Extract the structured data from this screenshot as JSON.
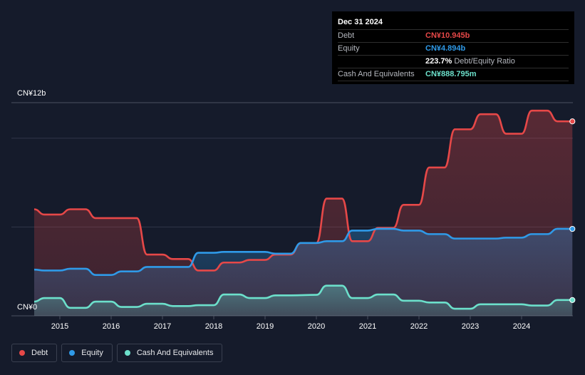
{
  "tooltip": {
    "date": "Dec 31 2024",
    "rows": [
      {
        "label": "Debt",
        "value": "CN¥10.945b",
        "color": "#e64848"
      },
      {
        "label": "Equity",
        "value": "CN¥4.894b",
        "color": "#2f9ae8"
      },
      {
        "label": "",
        "value": "223.7%",
        "suffix": "Debt/Equity Ratio",
        "color": "#ffffff"
      },
      {
        "label": "Cash And Equivalents",
        "value": "CN¥888.795m",
        "color": "#6ce0cb"
      }
    ]
  },
  "colors": {
    "debt": "#e64848",
    "equity": "#2f9ae8",
    "cash": "#6ce0cb",
    "background": "#151b2b",
    "tooltip_bg": "#000000"
  },
  "legend": [
    {
      "label": "Debt",
      "color": "#e64848"
    },
    {
      "label": "Equity",
      "color": "#2f9ae8"
    },
    {
      "label": "Cash And Equivalents",
      "color": "#6ce0cb"
    }
  ],
  "chart_data": {
    "type": "area",
    "title": "",
    "xlabel": "",
    "ylabel": "",
    "y_top_label": "CN¥12b",
    "y_bottom_label": "CN¥0",
    "ylim": [
      0,
      12
    ],
    "xlim": [
      2014.5,
      2025.0
    ],
    "x_ticks": [
      2015,
      2016,
      2017,
      2018,
      2019,
      2020,
      2021,
      2022,
      2023,
      2024
    ],
    "x_tick_labels": [
      "2015",
      "2016",
      "2017",
      "2018",
      "2019",
      "2020",
      "2021",
      "2022",
      "2023",
      "2024"
    ],
    "grid": true,
    "legend_position": "bottom-left",
    "series": [
      {
        "name": "Debt",
        "key": "debt",
        "points": [
          [
            2014.5,
            6.0
          ],
          [
            2014.7,
            5.7
          ],
          [
            2015.0,
            5.7
          ],
          [
            2015.2,
            6.0
          ],
          [
            2015.5,
            6.0
          ],
          [
            2015.7,
            5.5
          ],
          [
            2016.0,
            5.5
          ],
          [
            2016.5,
            5.5
          ],
          [
            2016.7,
            3.45
          ],
          [
            2017.0,
            3.45
          ],
          [
            2017.2,
            3.2
          ],
          [
            2017.5,
            3.2
          ],
          [
            2017.7,
            2.55
          ],
          [
            2018.0,
            2.55
          ],
          [
            2018.2,
            3.0
          ],
          [
            2018.5,
            3.0
          ],
          [
            2018.7,
            3.15
          ],
          [
            2019.0,
            3.15
          ],
          [
            2019.2,
            3.45
          ],
          [
            2019.5,
            3.45
          ],
          [
            2019.7,
            4.1
          ],
          [
            2020.0,
            4.1
          ],
          [
            2020.2,
            6.6
          ],
          [
            2020.5,
            6.6
          ],
          [
            2020.7,
            4.2
          ],
          [
            2021.0,
            4.2
          ],
          [
            2021.2,
            4.95
          ],
          [
            2021.5,
            4.95
          ],
          [
            2021.7,
            6.25
          ],
          [
            2022.0,
            6.25
          ],
          [
            2022.2,
            8.35
          ],
          [
            2022.5,
            8.35
          ],
          [
            2022.7,
            10.5
          ],
          [
            2023.0,
            10.5
          ],
          [
            2023.2,
            11.35
          ],
          [
            2023.5,
            11.35
          ],
          [
            2023.7,
            10.25
          ],
          [
            2024.0,
            10.25
          ],
          [
            2024.2,
            11.55
          ],
          [
            2024.5,
            11.55
          ],
          [
            2024.7,
            10.95
          ],
          [
            2024.99,
            10.945
          ]
        ]
      },
      {
        "name": "Equity",
        "key": "equity",
        "points": [
          [
            2014.5,
            2.6
          ],
          [
            2014.7,
            2.55
          ],
          [
            2015.0,
            2.55
          ],
          [
            2015.2,
            2.65
          ],
          [
            2015.5,
            2.65
          ],
          [
            2015.7,
            2.3
          ],
          [
            2016.0,
            2.3
          ],
          [
            2016.2,
            2.5
          ],
          [
            2016.5,
            2.5
          ],
          [
            2016.7,
            2.75
          ],
          [
            2017.0,
            2.75
          ],
          [
            2017.5,
            2.75
          ],
          [
            2017.7,
            3.55
          ],
          [
            2018.0,
            3.55
          ],
          [
            2018.2,
            3.6
          ],
          [
            2018.5,
            3.6
          ],
          [
            2019.0,
            3.6
          ],
          [
            2019.2,
            3.5
          ],
          [
            2019.5,
            3.5
          ],
          [
            2019.7,
            4.1
          ],
          [
            2020.0,
            4.1
          ],
          [
            2020.2,
            4.2
          ],
          [
            2020.5,
            4.2
          ],
          [
            2020.7,
            4.8
          ],
          [
            2021.0,
            4.8
          ],
          [
            2021.2,
            4.9
          ],
          [
            2021.5,
            4.9
          ],
          [
            2021.7,
            4.8
          ],
          [
            2022.0,
            4.8
          ],
          [
            2022.2,
            4.6
          ],
          [
            2022.5,
            4.6
          ],
          [
            2022.7,
            4.35
          ],
          [
            2023.0,
            4.35
          ],
          [
            2023.5,
            4.35
          ],
          [
            2023.7,
            4.4
          ],
          [
            2024.0,
            4.4
          ],
          [
            2024.2,
            4.6
          ],
          [
            2024.5,
            4.6
          ],
          [
            2024.7,
            4.9
          ],
          [
            2024.99,
            4.894
          ]
        ]
      },
      {
        "name": "Cash And Equivalents",
        "key": "cash",
        "points": [
          [
            2014.5,
            0.8
          ],
          [
            2014.7,
            1.0
          ],
          [
            2015.0,
            1.0
          ],
          [
            2015.2,
            0.45
          ],
          [
            2015.5,
            0.45
          ],
          [
            2015.7,
            0.8
          ],
          [
            2016.0,
            0.8
          ],
          [
            2016.2,
            0.5
          ],
          [
            2016.5,
            0.5
          ],
          [
            2016.7,
            0.68
          ],
          [
            2017.0,
            0.68
          ],
          [
            2017.2,
            0.55
          ],
          [
            2017.5,
            0.55
          ],
          [
            2017.7,
            0.6
          ],
          [
            2018.0,
            0.6
          ],
          [
            2018.2,
            1.2
          ],
          [
            2018.5,
            1.2
          ],
          [
            2018.7,
            1.0
          ],
          [
            2019.0,
            1.0
          ],
          [
            2019.2,
            1.15
          ],
          [
            2019.5,
            1.15
          ],
          [
            2020.0,
            1.18
          ],
          [
            2020.2,
            1.7
          ],
          [
            2020.5,
            1.7
          ],
          [
            2020.7,
            1.0
          ],
          [
            2021.0,
            1.0
          ],
          [
            2021.2,
            1.2
          ],
          [
            2021.5,
            1.2
          ],
          [
            2021.7,
            0.85
          ],
          [
            2022.0,
            0.85
          ],
          [
            2022.2,
            0.75
          ],
          [
            2022.5,
            0.75
          ],
          [
            2022.7,
            0.4
          ],
          [
            2023.0,
            0.4
          ],
          [
            2023.2,
            0.65
          ],
          [
            2023.5,
            0.65
          ],
          [
            2024.0,
            0.65
          ],
          [
            2024.2,
            0.58
          ],
          [
            2024.5,
            0.58
          ],
          [
            2024.7,
            0.89
          ],
          [
            2024.99,
            0.889
          ]
        ]
      }
    ]
  }
}
